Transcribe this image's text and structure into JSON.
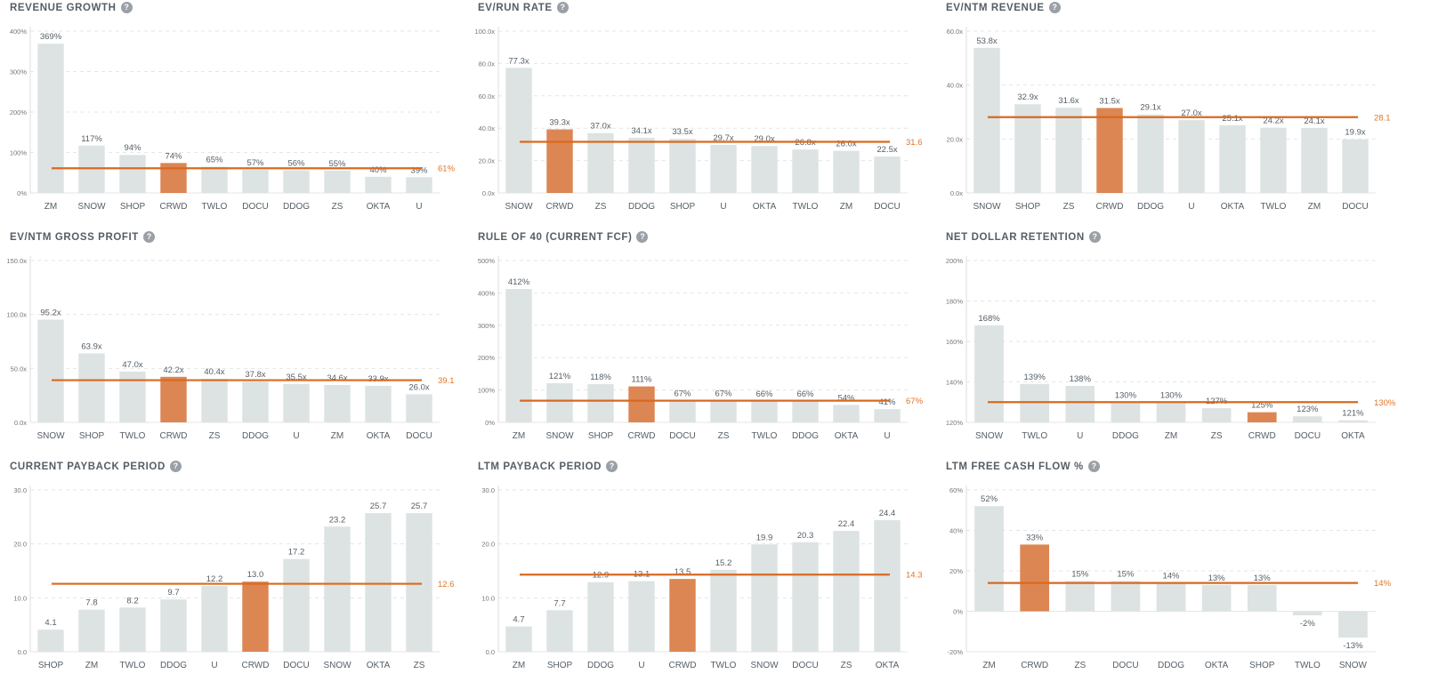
{
  "colors": {
    "bar": "#dde3e3",
    "highlight": "#dc8654",
    "median_line": "#d9691f",
    "median_label": "#e07526",
    "grid": "#e6e6e6",
    "text": "#555e66",
    "tick": "#777777"
  },
  "highlight_category": "CRWD",
  "chart_data": [
    {
      "type": "bar",
      "title": "REVENUE GROWTH",
      "categories": [
        "ZM",
        "SNOW",
        "SHOP",
        "CRWD",
        "TWLO",
        "DOCU",
        "DDOG",
        "ZS",
        "OKTA",
        "U"
      ],
      "values": [
        369,
        117,
        94,
        74,
        65,
        57,
        56,
        55,
        40,
        39
      ],
      "value_labels": [
        "369%",
        "117%",
        "94%",
        "74%",
        "65%",
        "57%",
        "56%",
        "55%",
        "40%",
        "39%"
      ],
      "yticks": [
        0,
        100,
        200,
        300,
        400
      ],
      "ytick_labels": [
        "0%",
        "100%",
        "200%",
        "300%",
        "400%"
      ],
      "ylim": [
        0,
        400
      ],
      "median": 61,
      "median_label": "61%"
    },
    {
      "type": "bar",
      "title": "EV/RUN RATE",
      "categories": [
        "SNOW",
        "CRWD",
        "ZS",
        "DDOG",
        "SHOP",
        "U",
        "OKTA",
        "TWLO",
        "ZM",
        "DOCU"
      ],
      "values": [
        77.3,
        39.3,
        37.0,
        34.1,
        33.5,
        29.7,
        29.0,
        26.8,
        26.0,
        22.5
      ],
      "value_labels": [
        "77.3x",
        "39.3x",
        "37.0x",
        "34.1x",
        "33.5x",
        "29.7x",
        "29.0x",
        "26.8x",
        "26.0x",
        "22.5x"
      ],
      "yticks": [
        0,
        20,
        40,
        60,
        80,
        100
      ],
      "ytick_labels": [
        "0.0x",
        "20.0x",
        "40.0x",
        "60.0x",
        "80.0x",
        "100.0x"
      ],
      "ylim": [
        0,
        100
      ],
      "median": 31.6,
      "median_label": "31.6"
    },
    {
      "type": "bar",
      "title": "EV/NTM REVENUE",
      "categories": [
        "SNOW",
        "SHOP",
        "ZS",
        "CRWD",
        "DDOG",
        "U",
        "OKTA",
        "TWLO",
        "ZM",
        "DOCU"
      ],
      "values": [
        53.8,
        32.9,
        31.6,
        31.5,
        29.1,
        27.0,
        25.1,
        24.2,
        24.1,
        19.9
      ],
      "value_labels": [
        "53.8x",
        "32.9x",
        "31.6x",
        "31.5x",
        "29.1x",
        "27.0x",
        "25.1x",
        "24.2x",
        "24.1x",
        "19.9x"
      ],
      "yticks": [
        0,
        20,
        40,
        60
      ],
      "ytick_labels": [
        "0.0x",
        "20.0x",
        "40.0x",
        "60.0x"
      ],
      "ylim": [
        0,
        60
      ],
      "median": 28.1,
      "median_label": "28.1"
    },
    {
      "type": "bar",
      "title": "EV/NTM GROSS PROFIT",
      "categories": [
        "SNOW",
        "SHOP",
        "TWLO",
        "CRWD",
        "ZS",
        "DDOG",
        "U",
        "ZM",
        "OKTA",
        "DOCU"
      ],
      "values": [
        95.2,
        63.9,
        47.0,
        42.2,
        40.4,
        37.8,
        35.5,
        34.6,
        33.9,
        26.0
      ],
      "value_labels": [
        "95.2x",
        "63.9x",
        "47.0x",
        "42.2x",
        "40.4x",
        "37.8x",
        "35.5x",
        "34.6x",
        "33.9x",
        "26.0x"
      ],
      "yticks": [
        0,
        50,
        100,
        150
      ],
      "ytick_labels": [
        "0.0x",
        "50.0x",
        "100.0x",
        "150.0x"
      ],
      "ylim": [
        0,
        150
      ],
      "median": 39.1,
      "median_label": "39.1"
    },
    {
      "type": "bar",
      "title": "RULE OF 40 (CURRENT FCF)",
      "categories": [
        "ZM",
        "SNOW",
        "SHOP",
        "CRWD",
        "DOCU",
        "ZS",
        "TWLO",
        "DDOG",
        "OKTA",
        "U"
      ],
      "values": [
        412,
        121,
        118,
        111,
        67,
        67,
        66,
        66,
        54,
        41
      ],
      "value_labels": [
        "412%",
        "121%",
        "118%",
        "111%",
        "67%",
        "67%",
        "66%",
        "66%",
        "54%",
        "41%"
      ],
      "yticks": [
        0,
        100,
        200,
        300,
        400,
        500
      ],
      "ytick_labels": [
        "0%",
        "100%",
        "200%",
        "300%",
        "400%",
        "500%"
      ],
      "ylim": [
        0,
        500
      ],
      "median": 67,
      "median_label": "67%"
    },
    {
      "type": "bar",
      "title": "NET DOLLAR RETENTION",
      "categories": [
        "SNOW",
        "TWLO",
        "U",
        "DDOG",
        "ZM",
        "ZS",
        "CRWD",
        "DOCU",
        "OKTA"
      ],
      "values": [
        168,
        139,
        138,
        130,
        130,
        127,
        125,
        123,
        121
      ],
      "value_labels": [
        "168%",
        "139%",
        "138%",
        "130%",
        "130%",
        "127%",
        "125%",
        "123%",
        "121%"
      ],
      "yticks": [
        120,
        140,
        160,
        180,
        200
      ],
      "ytick_labels": [
        "120%",
        "140%",
        "160%",
        "180%",
        "200%"
      ],
      "ylim": [
        120,
        200
      ],
      "median": 130,
      "median_label": "130%"
    },
    {
      "type": "bar",
      "title": "CURRENT PAYBACK PERIOD",
      "categories": [
        "SHOP",
        "ZM",
        "TWLO",
        "DDOG",
        "U",
        "CRWD",
        "DOCU",
        "SNOW",
        "OKTA",
        "ZS"
      ],
      "values": [
        4.1,
        7.8,
        8.2,
        9.7,
        12.2,
        13.0,
        17.2,
        23.2,
        25.7,
        25.7
      ],
      "value_labels": [
        "4.1",
        "7.8",
        "8.2",
        "9.7",
        "12.2",
        "13.0",
        "17.2",
        "23.2",
        "25.7",
        "25.7"
      ],
      "yticks": [
        0,
        10,
        20,
        30
      ],
      "ytick_labels": [
        "0.0",
        "10.0",
        "20.0",
        "30.0"
      ],
      "ylim": [
        0,
        30
      ],
      "median": 12.6,
      "median_label": "12.6"
    },
    {
      "type": "bar",
      "title": "LTM PAYBACK PERIOD",
      "categories": [
        "ZM",
        "SHOP",
        "DDOG",
        "U",
        "CRWD",
        "TWLO",
        "SNOW",
        "DOCU",
        "ZS",
        "OKTA"
      ],
      "values": [
        4.7,
        7.7,
        12.9,
        13.1,
        13.5,
        15.2,
        19.9,
        20.3,
        22.4,
        24.4
      ],
      "value_labels": [
        "4.7",
        "7.7",
        "12.9",
        "13.1",
        "13.5",
        "15.2",
        "19.9",
        "20.3",
        "22.4",
        "24.4"
      ],
      "yticks": [
        0,
        10,
        20,
        30
      ],
      "ytick_labels": [
        "0.0",
        "10.0",
        "20.0",
        "30.0"
      ],
      "ylim": [
        0,
        30
      ],
      "median": 14.3,
      "median_label": "14.3"
    },
    {
      "type": "bar",
      "title": "LTM FREE CASH FLOW %",
      "categories": [
        "ZM",
        "CRWD",
        "ZS",
        "DOCU",
        "DDOG",
        "OKTA",
        "SHOP",
        "TWLO",
        "SNOW"
      ],
      "values": [
        52,
        33,
        15,
        15,
        14,
        13,
        13,
        -2,
        -13
      ],
      "value_labels": [
        "52%",
        "33%",
        "15%",
        "15%",
        "14%",
        "13%",
        "13%",
        "-2%",
        "-13%"
      ],
      "yticks": [
        -20,
        0,
        20,
        40,
        60
      ],
      "ytick_labels": [
        "-20%",
        "0%",
        "20%",
        "40%",
        "60%"
      ],
      "ylim": [
        -20,
        60
      ],
      "median": 14,
      "median_label": "14%"
    }
  ]
}
